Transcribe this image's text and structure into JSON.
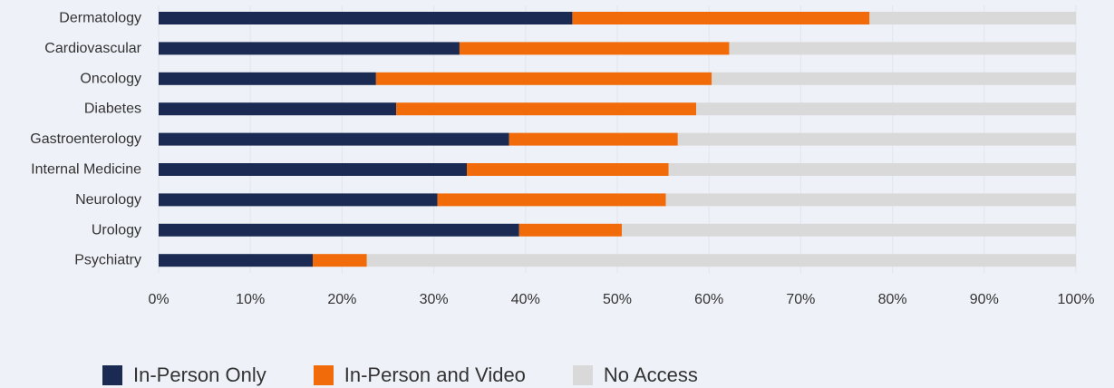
{
  "chart_data": {
    "type": "bar",
    "orientation": "horizontal",
    "stacked": true,
    "categories": [
      "Dermatology",
      "Cardiovascular",
      "Oncology",
      "Diabetes",
      "Gastroenterology",
      "Internal Medicine",
      "Neurology",
      "Urology",
      "Psychiatry"
    ],
    "series": [
      {
        "name": "In-Person Only",
        "color": "#1b2a52",
        "values": [
          45.1,
          32.8,
          23.7,
          25.9,
          38.2,
          33.6,
          30.4,
          39.3,
          16.8
        ]
      },
      {
        "name": "In-Person and Video",
        "color": "#f26b0a",
        "values": [
          32.4,
          29.4,
          36.6,
          32.7,
          18.4,
          22.0,
          24.9,
          11.2,
          5.9
        ]
      },
      {
        "name": "No Access",
        "color": "#d9d9d9",
        "values": [
          22.5,
          37.8,
          39.7,
          41.4,
          43.4,
          44.4,
          44.7,
          49.5,
          77.3
        ]
      }
    ],
    "xlim": [
      0,
      100
    ],
    "xticks": [
      "0%",
      "10%",
      "20%",
      "30%",
      "40%",
      "50%",
      "60%",
      "70%",
      "80%",
      "90%",
      "100%"
    ],
    "grid": true,
    "legend_position": "bottom-left"
  },
  "legend": {
    "items": [
      {
        "label": "In-Person Only",
        "color": "#1b2a52"
      },
      {
        "label": "In-Person and Video",
        "color": "#f26b0a"
      },
      {
        "label": "No Access",
        "color": "#d9d9d9"
      }
    ]
  }
}
